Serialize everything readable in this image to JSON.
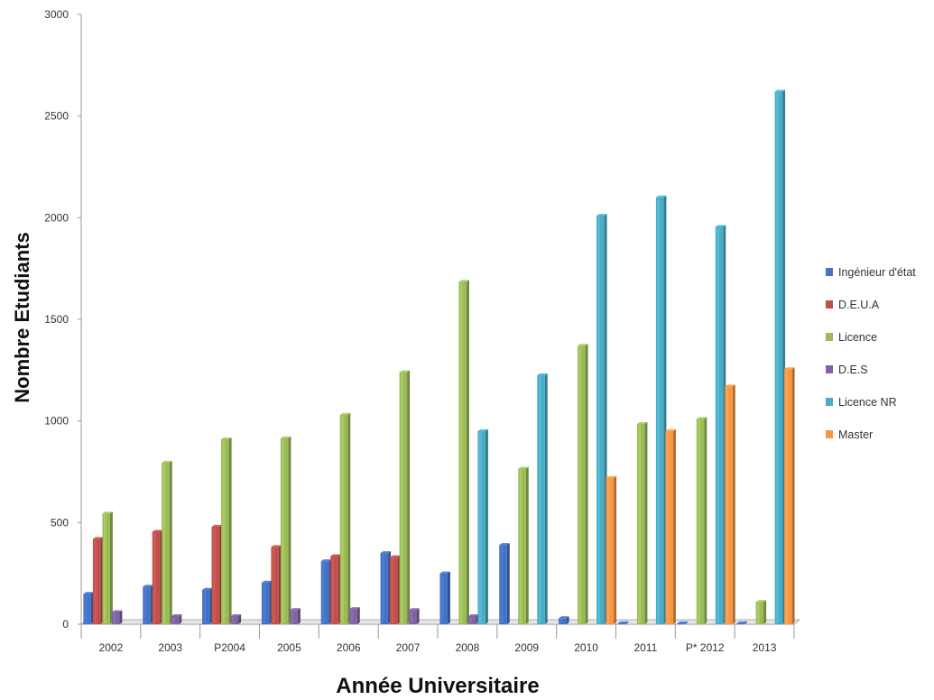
{
  "chart_data": {
    "type": "bar",
    "title": "",
    "xlabel": "Année Universitaire",
    "ylabel": "Nombre Etudiants",
    "ylim": [
      0,
      3000
    ],
    "yticks": [
      0,
      500,
      1000,
      1500,
      2000,
      2500,
      3000
    ],
    "legend_position": "right",
    "grid": false,
    "categories": [
      "2002",
      "2003",
      "P2004",
      "2005",
      "2006",
      "2007",
      "2008",
      "2009",
      "2010",
      "2011",
      "P* 2012",
      "2013"
    ],
    "series": [
      {
        "name": "Ingénieur d'état",
        "color": "#4472C4",
        "values": [
          150,
          185,
          170,
          205,
          310,
          350,
          250,
          390,
          30,
          5,
          5,
          5
        ]
      },
      {
        "name": "D.E.U.A",
        "color": "#C0504D",
        "values": [
          420,
          455,
          480,
          380,
          335,
          330,
          0,
          0,
          0,
          0,
          0,
          0
        ]
      },
      {
        "name": "Licence",
        "color": "#9BBB59",
        "values": [
          545,
          795,
          910,
          915,
          1030,
          1240,
          1685,
          765,
          1370,
          985,
          1010,
          110
        ]
      },
      {
        "name": "D.E.S",
        "color": "#8064A2",
        "values": [
          60,
          40,
          40,
          70,
          75,
          70,
          40,
          0,
          0,
          0,
          0,
          0
        ]
      },
      {
        "name": "Licence NR",
        "color": "#4BACC6",
        "values": [
          0,
          0,
          0,
          0,
          0,
          0,
          950,
          1225,
          2010,
          2100,
          1955,
          2620
        ]
      },
      {
        "name": "Master",
        "color": "#F79646",
        "values": [
          0,
          0,
          0,
          0,
          0,
          0,
          0,
          0,
          720,
          950,
          1170,
          1255
        ]
      }
    ]
  }
}
